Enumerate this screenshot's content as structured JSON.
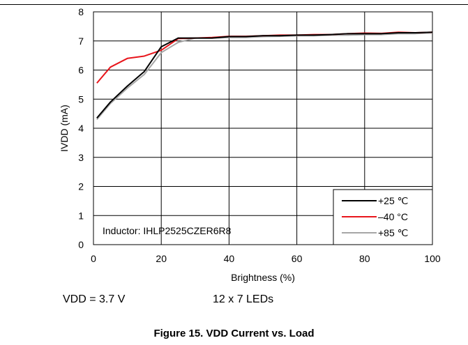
{
  "chart_data": {
    "type": "line",
    "xlabel": "Brightness (%)",
    "ylabel": "IVDD (mA)",
    "xlim": [
      0,
      100
    ],
    "ylim": [
      0,
      8
    ],
    "xticks": [
      "0",
      "20",
      "40",
      "60",
      "80",
      "100"
    ],
    "yticks": [
      "0",
      "1",
      "2",
      "3",
      "4",
      "5",
      "6",
      "7",
      "8"
    ],
    "grid": true,
    "legend_position": "bottom-right",
    "annotation": "Inductor: IHLP2525CZER6R8",
    "series": [
      {
        "name": "+25 ℃",
        "color": "#000000",
        "x": [
          1,
          5,
          10,
          15,
          20,
          25,
          30,
          35,
          40,
          45,
          50,
          55,
          60,
          65,
          70,
          75,
          80,
          85,
          90,
          95,
          100
        ],
        "y": [
          4.35,
          4.9,
          5.45,
          5.95,
          6.8,
          7.1,
          7.1,
          7.1,
          7.15,
          7.15,
          7.18,
          7.18,
          7.2,
          7.2,
          7.22,
          7.25,
          7.25,
          7.25,
          7.28,
          7.28,
          7.3
        ]
      },
      {
        "name": "–40 °C",
        "color": "#e8151b",
        "x": [
          1,
          5,
          10,
          15,
          20,
          25,
          30,
          35,
          40,
          45,
          50,
          55,
          60,
          65,
          70,
          75,
          80,
          85,
          90,
          95,
          100
        ],
        "y": [
          5.55,
          6.1,
          6.4,
          6.48,
          6.68,
          7.08,
          7.1,
          7.12,
          7.16,
          7.16,
          7.18,
          7.2,
          7.2,
          7.22,
          7.22,
          7.25,
          7.27,
          7.26,
          7.3,
          7.28,
          7.3
        ]
      },
      {
        "name": "+85 ℃",
        "color": "#a6a6a6",
        "x": [
          1,
          5,
          10,
          15,
          20,
          25,
          30,
          35,
          40,
          45,
          50,
          55,
          60,
          65,
          70,
          75,
          80,
          85,
          90,
          95,
          100
        ],
        "y": [
          4.3,
          4.85,
          5.38,
          5.85,
          6.6,
          6.95,
          7.1,
          7.1,
          7.12,
          7.12,
          7.15,
          7.16,
          7.18,
          7.18,
          7.2,
          7.2,
          7.22,
          7.22,
          7.25,
          7.25,
          7.28
        ]
      }
    ]
  },
  "conditions": {
    "vdd": "VDD = 3.7 V",
    "leds": "12 x 7 LEDs"
  },
  "caption": "Figure 15. VDD Current vs. Load"
}
